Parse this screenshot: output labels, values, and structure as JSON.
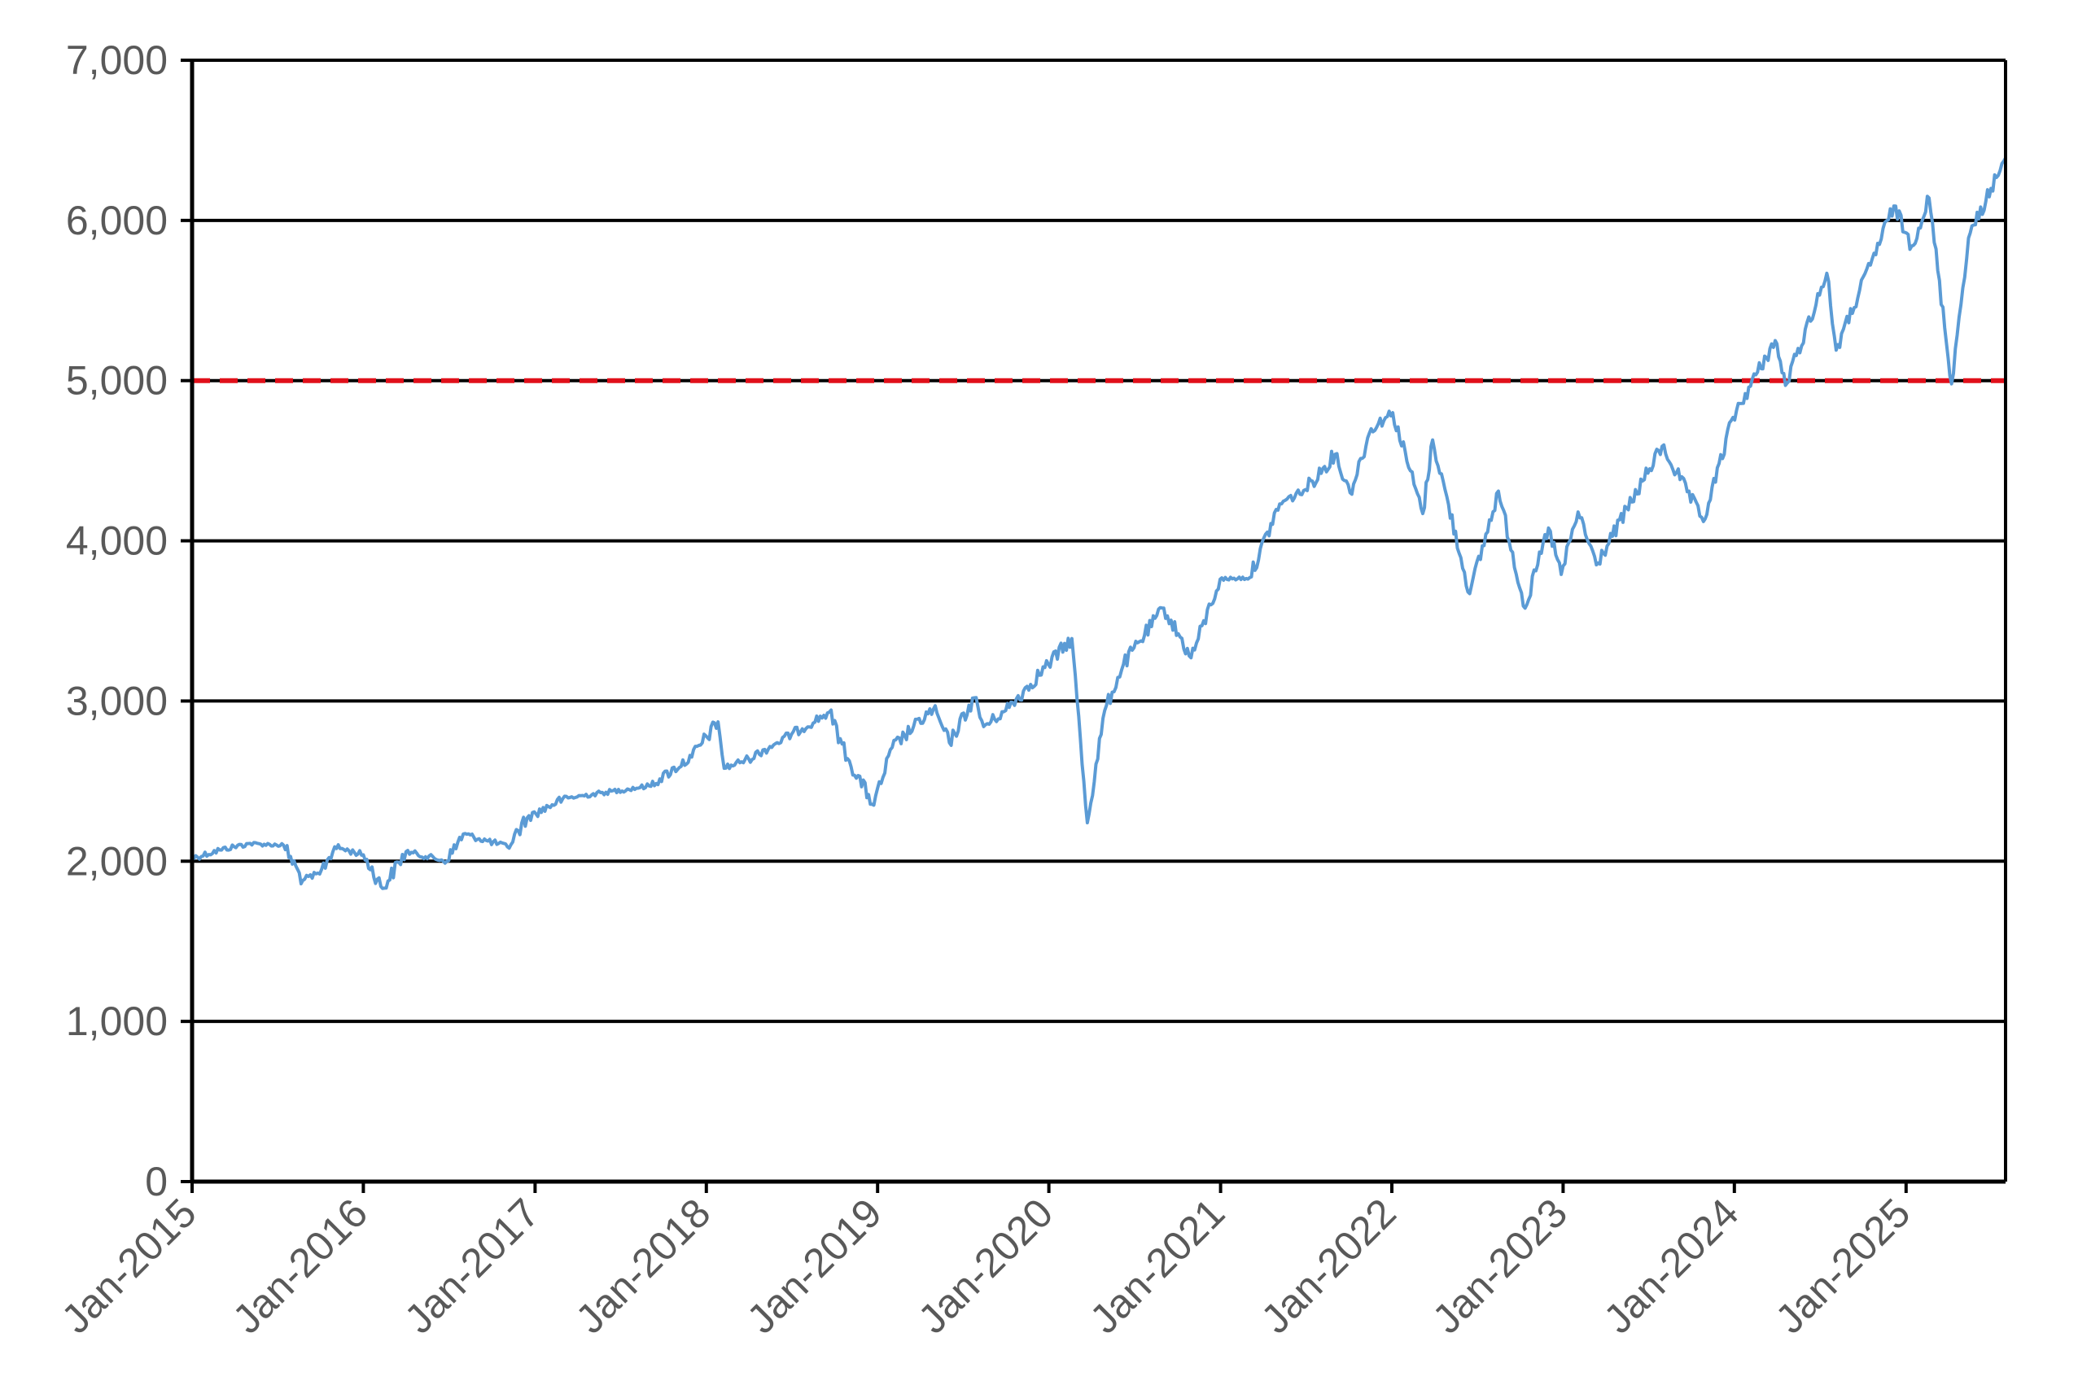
{
  "chart_data": {
    "type": "line",
    "x_axis": {
      "type": "date",
      "range": [
        "2015-01-01",
        "2025-08-01"
      ],
      "tick_labels": [
        "Jan-2015",
        "Jan-2016",
        "Jan-2017",
        "Jan-2018",
        "Jan-2019",
        "Jan-2020",
        "Jan-2021",
        "Jan-2022",
        "Jan-2023",
        "Jan-2024",
        "Jan-2025"
      ],
      "tick_dates": [
        "2015-01-01",
        "2016-01-01",
        "2017-01-01",
        "2018-01-01",
        "2019-01-01",
        "2020-01-01",
        "2021-01-01",
        "2022-01-01",
        "2023-01-01",
        "2024-01-01",
        "2025-01-01"
      ]
    },
    "y_axis": {
      "range": [
        0,
        7000
      ],
      "ticks": [
        0,
        1000,
        2000,
        3000,
        4000,
        5000,
        6000,
        7000
      ],
      "tick_labels": [
        "0",
        "1,000",
        "2,000",
        "3,000",
        "4,000",
        "5,000",
        "6,000",
        "7,000"
      ]
    },
    "grid": "horizontal",
    "reference_line": {
      "y": 5000,
      "style": "dashed",
      "color": "#e0101a"
    },
    "series": [
      {
        "color": "#5b9bd5",
        "points": [
          [
            "2015-01-01",
            2020
          ],
          [
            "2015-03-01",
            2070
          ],
          [
            "2015-05-01",
            2110
          ],
          [
            "2015-07-15",
            2100
          ],
          [
            "2015-08-25",
            1880
          ],
          [
            "2015-09-30",
            1920
          ],
          [
            "2015-11-01",
            2090
          ],
          [
            "2016-01-01",
            2040
          ],
          [
            "2016-02-11",
            1830
          ],
          [
            "2016-04-01",
            2060
          ],
          [
            "2016-06-27",
            2000
          ],
          [
            "2016-08-01",
            2170
          ],
          [
            "2016-11-03",
            2090
          ],
          [
            "2016-12-15",
            2270
          ],
          [
            "2017-03-01",
            2390
          ],
          [
            "2017-06-01",
            2430
          ],
          [
            "2017-09-01",
            2470
          ],
          [
            "2017-12-01",
            2650
          ],
          [
            "2018-01-26",
            2870
          ],
          [
            "2018-02-08",
            2580
          ],
          [
            "2018-04-01",
            2640
          ],
          [
            "2018-06-01",
            2740
          ],
          [
            "2018-09-20",
            2930
          ],
          [
            "2018-10-29",
            2640
          ],
          [
            "2018-12-24",
            2350
          ],
          [
            "2019-02-01",
            2710
          ],
          [
            "2019-04-30",
            2950
          ],
          [
            "2019-06-03",
            2740
          ],
          [
            "2019-07-26",
            3020
          ],
          [
            "2019-08-15",
            2840
          ],
          [
            "2019-10-01",
            2940
          ],
          [
            "2019-12-31",
            3230
          ],
          [
            "2020-02-19",
            3390
          ],
          [
            "2020-03-23",
            2240
          ],
          [
            "2020-04-29",
            2940
          ],
          [
            "2020-06-08",
            3230
          ],
          [
            "2020-09-02",
            3580
          ],
          [
            "2020-10-30",
            3270
          ],
          [
            "2020-12-31",
            3760
          ],
          [
            "2021-03-04",
            3770
          ],
          [
            "2021-05-07",
            4230
          ],
          [
            "2021-07-01",
            4320
          ],
          [
            "2021-09-02",
            4540
          ],
          [
            "2021-10-04",
            4300
          ],
          [
            "2021-11-18",
            4700
          ],
          [
            "2022-01-03",
            4800
          ],
          [
            "2022-03-08",
            4170
          ],
          [
            "2022-03-29",
            4630
          ],
          [
            "2022-06-16",
            3670
          ],
          [
            "2022-08-16",
            4310
          ],
          [
            "2022-10-12",
            3580
          ],
          [
            "2022-12-01",
            4080
          ],
          [
            "2022-12-28",
            3790
          ],
          [
            "2023-02-02",
            4180
          ],
          [
            "2023-03-13",
            3850
          ],
          [
            "2023-07-31",
            4590
          ],
          [
            "2023-10-27",
            4120
          ],
          [
            "2023-12-29",
            4770
          ],
          [
            "2024-03-28",
            5250
          ],
          [
            "2024-04-19",
            4970
          ],
          [
            "2024-07-16",
            5670
          ],
          [
            "2024-08-05",
            5190
          ],
          [
            "2024-12-06",
            6090
          ],
          [
            "2025-01-13",
            5840
          ],
          [
            "2025-02-19",
            6140
          ],
          [
            "2025-04-08",
            4980
          ],
          [
            "2025-05-14",
            5890
          ],
          [
            "2025-07-01",
            6200
          ],
          [
            "2025-08-01",
            6390
          ]
        ]
      }
    ]
  }
}
